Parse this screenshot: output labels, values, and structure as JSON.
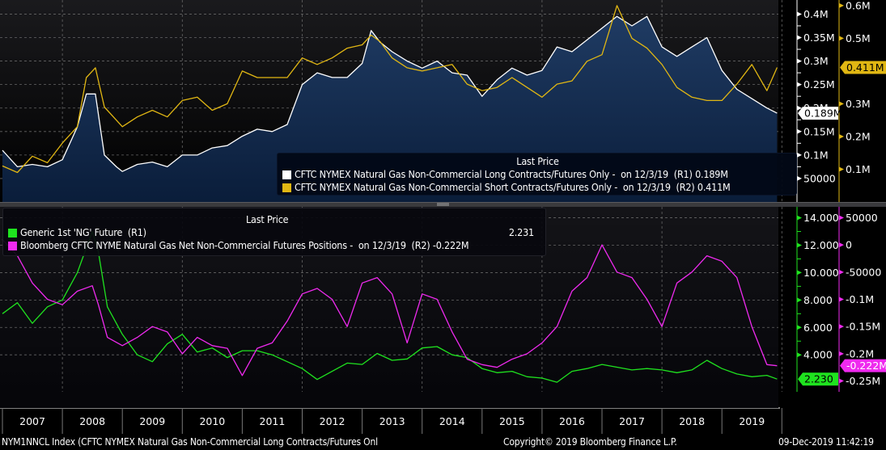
{
  "footer": {
    "ticker_desc": "NYM1NNCL Index (CFTC NYMEX Natural Gas Non-Commercial Long Contracts/Futures Onl",
    "copyright": "Copyright© 2019 Bloomberg Finance L.P.",
    "timestamp": "09-Dec-2019 11:42:19"
  },
  "chart_data": [
    {
      "type": "area",
      "panel": "top",
      "legend_title": "Last Price",
      "legend": [
        {
          "label": "CFTC NYMEX Natural Gas Non-Commercial Long Contracts/Futures Only -",
          "date": "on 12/3/19",
          "axis": "(R1)",
          "value": "0.189M",
          "color": "#ffffff"
        },
        {
          "label": "CFTC NYMEX Natural Gas Non-Commercial Short Contracts/Futures Only -",
          "date": "on 12/3/19",
          "axis": "(R2)",
          "value": "0.411M",
          "color": "#e1b713"
        }
      ],
      "axes": {
        "r1": {
          "ticks": [
            "50000",
            "0.1M",
            "0.15M",
            "0.2M",
            "0.25M",
            "0.3M",
            "0.35M",
            "0.4M"
          ],
          "tick_values": [
            50000,
            100000,
            150000,
            200000,
            250000,
            300000,
            350000,
            400000
          ],
          "range": [
            0,
            430000
          ],
          "last_value_label": "0.189M",
          "color": "#ffffff"
        },
        "r2": {
          "ticks": [
            "0.1M",
            "0.2M",
            "0.3M",
            "0.5M",
            "0.6M"
          ],
          "tick_values": [
            100000,
            200000,
            300000,
            500000,
            600000
          ],
          "range": [
            0,
            617000
          ],
          "last_value_label": "0.411M",
          "color": "#e1b713"
        }
      },
      "x": [
        2007.0,
        2007.25,
        2007.5,
        2007.75,
        2008.0,
        2008.25,
        2008.4,
        2008.55,
        2008.7,
        2008.9,
        2009.0,
        2009.25,
        2009.5,
        2009.75,
        2010.0,
        2010.25,
        2010.5,
        2010.75,
        2011.0,
        2011.25,
        2011.5,
        2011.75,
        2012.0,
        2012.25,
        2012.5,
        2012.75,
        2013.0,
        2013.15,
        2013.3,
        2013.5,
        2013.75,
        2014.0,
        2014.25,
        2014.5,
        2014.75,
        2015.0,
        2015.25,
        2015.5,
        2015.75,
        2016.0,
        2016.25,
        2016.5,
        2016.75,
        2017.0,
        2017.25,
        2017.5,
        2017.75,
        2018.0,
        2018.25,
        2018.5,
        2018.75,
        2019.0,
        2019.25,
        2019.5,
        2019.75,
        2019.92
      ],
      "series": [
        {
          "name": "Long Contracts (R1)",
          "color": "#ffffff",
          "values": [
            110000,
            75000,
            80000,
            75000,
            90000,
            160000,
            230000,
            230000,
            100000,
            75000,
            65000,
            80000,
            85000,
            75000,
            100000,
            100000,
            115000,
            120000,
            140000,
            155000,
            150000,
            165000,
            250000,
            275000,
            265000,
            265000,
            295000,
            365000,
            340000,
            320000,
            300000,
            285000,
            300000,
            275000,
            270000,
            225000,
            260000,
            285000,
            270000,
            280000,
            330000,
            320000,
            345000,
            370000,
            395000,
            375000,
            395000,
            330000,
            310000,
            330000,
            350000,
            280000,
            240000,
            220000,
            200000,
            189000
          ]
        },
        {
          "name": "Short Contracts (R2)",
          "color": "#e1b713",
          "values": [
            110000,
            90000,
            140000,
            120000,
            180000,
            230000,
            380000,
            410000,
            290000,
            250000,
            230000,
            260000,
            280000,
            260000,
            310000,
            320000,
            280000,
            300000,
            400000,
            380000,
            380000,
            380000,
            440000,
            420000,
            440000,
            470000,
            480000,
            510000,
            490000,
            440000,
            410000,
            400000,
            410000,
            420000,
            360000,
            340000,
            350000,
            380000,
            350000,
            320000,
            360000,
            370000,
            430000,
            450000,
            600000,
            500000,
            470000,
            420000,
            350000,
            320000,
            310000,
            310000,
            360000,
            420000,
            340000,
            411000
          ]
        }
      ]
    },
    {
      "type": "line",
      "panel": "bottom",
      "legend_title": "Last Price",
      "legend": [
        {
          "label": "Generic 1st 'NG' Future",
          "date": "",
          "axis": "(R1)",
          "value": "2.231",
          "color": "#1fe31f"
        },
        {
          "label": "Bloomberg CFTC NYME Natural Gas Net Non-Commercial Futures Positions -",
          "date": "on 12/3/19",
          "axis": "(R2)",
          "value": "-0.222M",
          "color": "#ef2aef"
        }
      ],
      "axes": {
        "r1": {
          "ticks": [
            "4.000",
            "6.000",
            "8.000",
            "10.000",
            "12.000",
            "14.000"
          ],
          "tick_values": [
            4,
            6,
            8,
            10,
            12,
            14
          ],
          "range": [
            1.3,
            14.8
          ],
          "last_value_label": "2.230",
          "color": "#1fe31f"
        },
        "r2": {
          "ticks": [
            "-0.25M",
            "-0.2M",
            "-0.15M",
            "-0.1M",
            "-50000",
            "0",
            "50000"
          ],
          "tick_values": [
            -250000,
            -200000,
            -150000,
            -100000,
            -50000,
            0,
            50000
          ],
          "range": [
            -270000,
            70000
          ],
          "last_value_label": "-0.222M",
          "color": "#ef2aef"
        }
      },
      "x": [
        2007.0,
        2007.25,
        2007.5,
        2007.75,
        2008.0,
        2008.25,
        2008.5,
        2008.6,
        2008.75,
        2009.0,
        2009.25,
        2009.5,
        2009.75,
        2010.0,
        2010.25,
        2010.5,
        2010.75,
        2011.0,
        2011.25,
        2011.5,
        2011.75,
        2012.0,
        2012.25,
        2012.5,
        2012.75,
        2013.0,
        2013.25,
        2013.5,
        2013.75,
        2014.0,
        2014.25,
        2014.5,
        2014.75,
        2015.0,
        2015.25,
        2015.5,
        2015.75,
        2016.0,
        2016.25,
        2016.5,
        2016.75,
        2017.0,
        2017.25,
        2017.5,
        2017.75,
        2018.0,
        2018.25,
        2018.5,
        2018.75,
        2019.0,
        2019.25,
        2019.5,
        2019.75,
        2019.92
      ],
      "series": [
        {
          "name": "Generic 1st 'NG' Future (R1)",
          "color": "#1fe31f",
          "values": [
            7.0,
            7.8,
            6.3,
            7.5,
            8.0,
            10.0,
            13.0,
            11.5,
            7.5,
            5.5,
            4.0,
            3.5,
            4.8,
            5.5,
            4.2,
            4.5,
            3.8,
            4.3,
            4.3,
            4.0,
            3.5,
            3.0,
            2.2,
            2.8,
            3.4,
            3.3,
            4.1,
            3.6,
            3.7,
            4.5,
            4.6,
            4.0,
            3.8,
            3.0,
            2.7,
            2.8,
            2.4,
            2.3,
            2.0,
            2.8,
            3.0,
            3.3,
            3.1,
            2.9,
            3.0,
            2.9,
            2.7,
            2.9,
            3.6,
            3.0,
            2.6,
            2.4,
            2.5,
            2.231
          ]
        },
        {
          "name": "Net Non-Commercial Futures Positions (R2)",
          "color": "#ef2aef",
          "values": [
            10000,
            -20000,
            -70000,
            -100000,
            -110000,
            -85000,
            -75000,
            -110000,
            -170000,
            -185000,
            -170000,
            -150000,
            -160000,
            -200000,
            -170000,
            -185000,
            -190000,
            -240000,
            -190000,
            -180000,
            -140000,
            -90000,
            -80000,
            -100000,
            -150000,
            -70000,
            -60000,
            -90000,
            -180000,
            -90000,
            -100000,
            -160000,
            -210000,
            -220000,
            -225000,
            -210000,
            -200000,
            -180000,
            -150000,
            -85000,
            -60000,
            0,
            -50000,
            -60000,
            -100000,
            -150000,
            -70000,
            -50000,
            -20000,
            -30000,
            -60000,
            -150000,
            -220000,
            -222000
          ]
        }
      ]
    }
  ],
  "x_axis": {
    "labels": [
      "2007",
      "2008",
      "2009",
      "2010",
      "2011",
      "2012",
      "2013",
      "2014",
      "2015",
      "2016",
      "2017",
      "2018",
      "2019"
    ]
  }
}
